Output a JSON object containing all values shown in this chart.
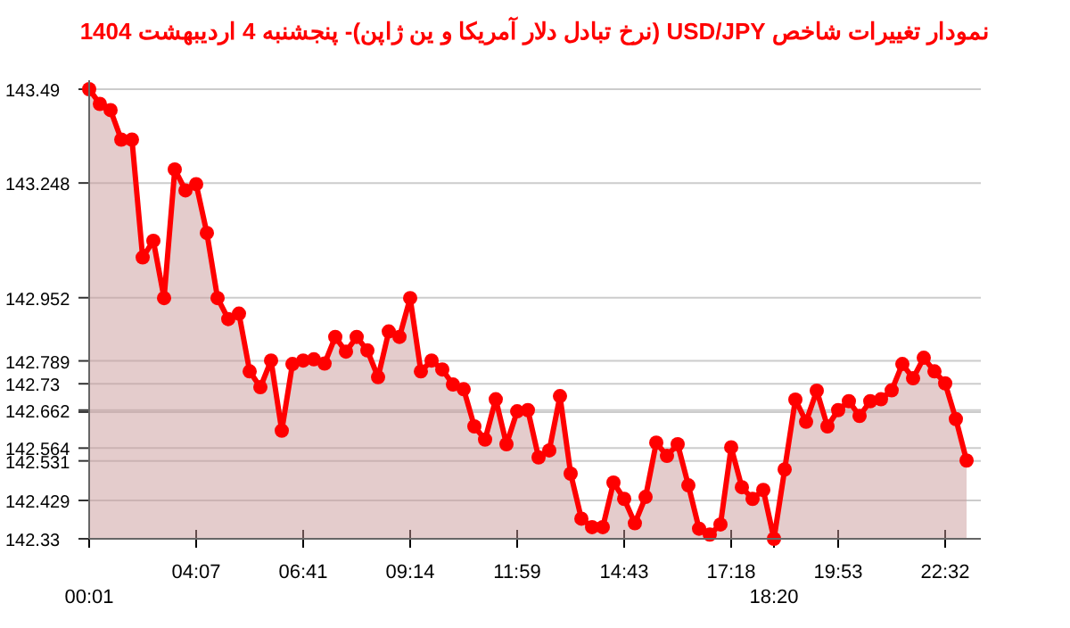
{
  "chart_data": {
    "type": "area",
    "title": "نمودار تغییرات شاخص USD/JPY (نرخ تبادل دلار آمریکا و ین ژاپن)- پنجشنبه  4 اردیبهشت 1404",
    "categories": [
      "00:01",
      null,
      null,
      null,
      null,
      null,
      null,
      null,
      null,
      null,
      "04:07",
      null,
      null,
      null,
      null,
      null,
      null,
      null,
      null,
      null,
      "06:41",
      null,
      null,
      null,
      null,
      null,
      null,
      null,
      null,
      null,
      "09:14",
      null,
      null,
      null,
      null,
      null,
      null,
      null,
      null,
      null,
      "11:59",
      null,
      null,
      null,
      null,
      null,
      null,
      null,
      null,
      null,
      "14:43",
      null,
      null,
      null,
      null,
      null,
      null,
      null,
      null,
      null,
      "17:18",
      null,
      null,
      null,
      "18:20",
      null,
      null,
      null,
      null,
      null,
      "19:53",
      null,
      null,
      null,
      null,
      null,
      null,
      null,
      null,
      null,
      "22:32",
      null,
      null
    ],
    "series": [
      {
        "color": "#ff0000",
        "values": [
          143.49,
          143.452,
          143.436,
          143.36,
          143.36,
          143.056,
          143.099,
          142.951,
          143.283,
          143.229,
          143.245,
          143.119,
          142.951,
          142.897,
          142.911,
          142.762,
          142.721,
          142.79,
          142.609,
          142.781,
          142.79,
          142.793,
          142.782,
          142.851,
          142.813,
          142.851,
          142.816,
          142.747,
          142.865,
          142.851,
          142.951,
          142.762,
          142.79,
          142.767,
          142.728,
          142.716,
          142.62,
          142.586,
          142.69,
          142.574,
          142.659,
          142.662,
          142.54,
          142.558,
          142.698,
          142.498,
          142.382,
          142.36,
          142.36,
          142.475,
          142.433,
          142.37,
          142.438,
          142.578,
          142.544,
          142.574,
          142.468,
          142.356,
          142.341,
          142.367,
          142.566,
          142.463,
          142.433,
          142.456,
          142.33,
          142.509,
          142.689,
          142.632,
          142.712,
          142.62,
          142.662,
          142.685,
          142.647,
          142.685,
          142.69,
          142.713,
          142.781,
          142.744,
          142.797,
          142.762,
          142.731,
          142.639,
          142.532
        ]
      }
    ],
    "ylim": [
      142.33,
      143.49
    ],
    "yticks": [
      143.49,
      143.248,
      142.952,
      142.789,
      142.73,
      142.662,
      {
        "value": 142.657,
        "label": null
      },
      142.564,
      142.531,
      142.429,
      142.33
    ],
    "grid": "y",
    "marker": "circle",
    "line_style": "solid"
  }
}
